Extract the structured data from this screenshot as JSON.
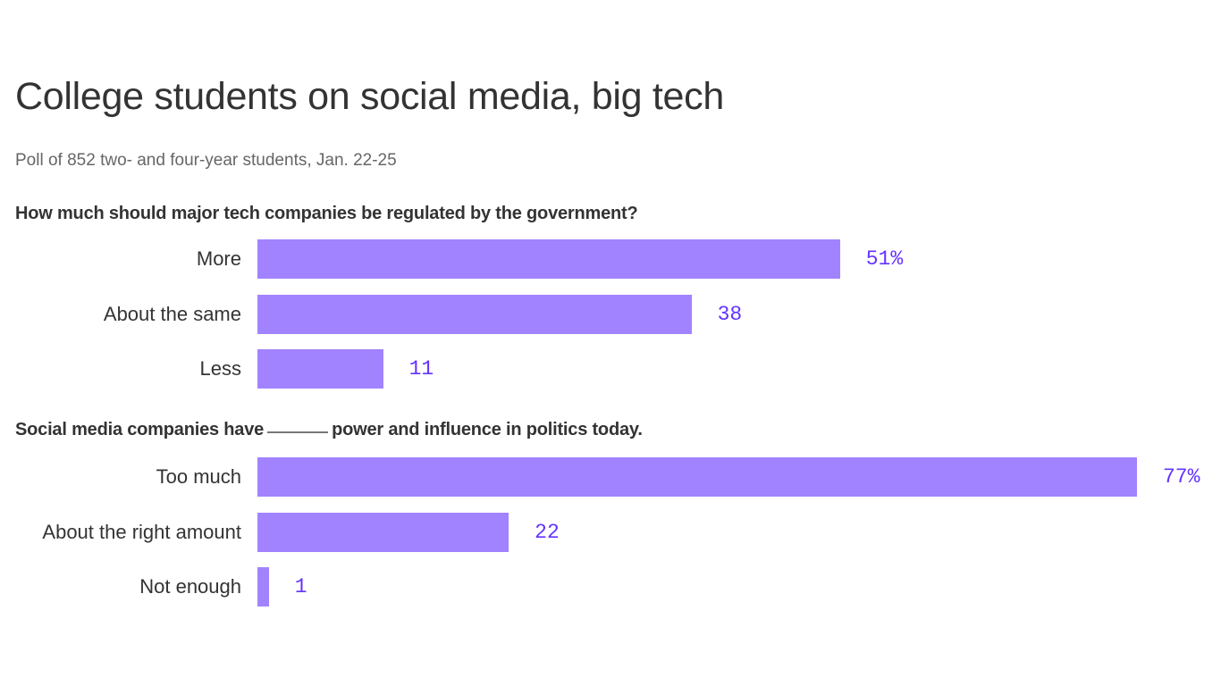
{
  "title": "College students on social media, big tech",
  "subtitle": "Poll of 852 two- and four-year students, Jan. 22-25",
  "colors": {
    "bar": "#a283ff",
    "label": "#6533ff"
  },
  "chart_data": [
    {
      "type": "bar",
      "orientation": "horizontal",
      "title": "How much should major tech companies be regulated by the government?",
      "categories": [
        "More",
        "About the same",
        "Less"
      ],
      "values": [
        51,
        38,
        11
      ],
      "labels": [
        "51%",
        "38",
        "11"
      ],
      "xlim": [
        0,
        77
      ]
    },
    {
      "type": "bar",
      "orientation": "horizontal",
      "title_before": "Social media companies have",
      "title_after": "power and influence in politics today.",
      "categories": [
        "Too much",
        "About the right amount",
        "Not enough"
      ],
      "values": [
        77,
        22,
        1
      ],
      "labels": [
        "77%",
        "22",
        "1"
      ],
      "xlim": [
        0,
        77
      ]
    }
  ]
}
